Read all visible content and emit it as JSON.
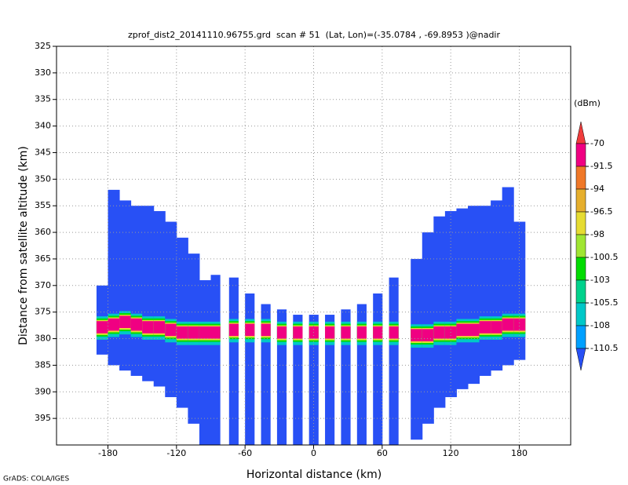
{
  "chart_data": {
    "type": "profile",
    "title": "zprof_dist2_20141110.96755.grd  scan # 51  (Lat, Lon)=(-35.0784 , -69.8953 )@nadir",
    "x_label": "Horizontal distance (km)",
    "y_label": "Distance from satellite altitude (km)",
    "footer": "GrADS: COLA/IGES",
    "xlim": [
      -225,
      225
    ],
    "xticks": [
      -180,
      -120,
      -60,
      0,
      60,
      120,
      180
    ],
    "ylim": [
      325,
      400
    ],
    "yticks": [
      325,
      330,
      335,
      340,
      345,
      350,
      355,
      360,
      365,
      370,
      375,
      380,
      385,
      390,
      395
    ],
    "grid": true,
    "colorbar": {
      "unit": "(dBm)",
      "levels": [
        -70,
        -91.5,
        -94,
        -96.5,
        -98,
        -100.5,
        -103,
        -105.5,
        -108,
        -110.5
      ],
      "colors": [
        "#f03c3c",
        "#f00082",
        "#f07828",
        "#e6af2d",
        "#e6dc32",
        "#a0e632",
        "#00dc00",
        "#00d28c",
        "#00c8c8",
        "#00a0ff",
        "#2850f5"
      ]
    },
    "groups": [
      {
        "width": 10,
        "x": [
          -185,
          -175,
          -165,
          -155,
          -145,
          -135,
          -125,
          -115,
          -105,
          -95
        ],
        "top": [
          370,
          352,
          354,
          355,
          355,
          356,
          358,
          361,
          364,
          369
        ],
        "bottom": [
          383,
          385,
          386,
          387,
          388,
          389,
          391,
          393,
          396,
          400
        ],
        "surface": [
          378,
          377.5,
          377,
          377.5,
          378,
          378,
          378.5,
          379,
          379,
          379
        ]
      },
      {
        "width": 8,
        "x": [
          -86,
          -70,
          -56,
          -42,
          -28,
          -14,
          0,
          14,
          28,
          42,
          56,
          70
        ],
        "top": [
          368,
          368.5,
          371.5,
          373.5,
          374.5,
          375.5,
          375.5,
          375.5,
          374.5,
          373.5,
          371.5,
          368.5
        ],
        "bottom": [
          400,
          400,
          400,
          400,
          400,
          400,
          400,
          400,
          400,
          400,
          400,
          400
        ],
        "surface": [
          379,
          378.5,
          378.5,
          378.5,
          379,
          379,
          379,
          379,
          379,
          379,
          379,
          379
        ]
      },
      {
        "width": 10,
        "x": [
          90,
          100,
          110,
          120,
          130,
          140,
          150,
          160,
          170,
          180
        ],
        "top": [
          365,
          360,
          357,
          356,
          355.5,
          355,
          355,
          354,
          351.5,
          358
        ],
        "bottom": [
          399,
          396,
          393,
          391,
          389.5,
          388.5,
          387,
          386,
          385,
          384
        ],
        "surface": [
          379.5,
          379.5,
          379,
          379,
          378.5,
          378.5,
          378,
          378,
          377.5,
          377.5
        ]
      }
    ]
  }
}
